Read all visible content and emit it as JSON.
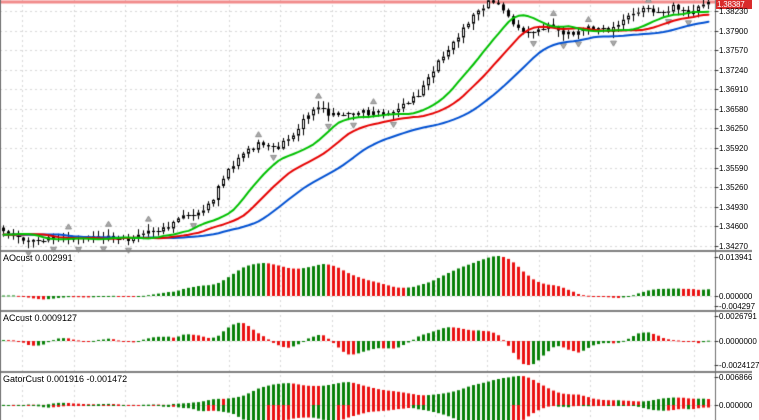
{
  "main_pane": {
    "price_labels": [
      "1.38230",
      "1.37900",
      "1.37570",
      "1.37240",
      "1.36910",
      "1.36580",
      "1.36250",
      "1.35920",
      "1.35590",
      "1.35260",
      "1.34930",
      "1.34600",
      "1.34270"
    ],
    "price_box": "1.38387"
  },
  "panes": [
    {
      "name": "awesome-oscillator",
      "label": "AOcust 0.002991",
      "scale_labels": [
        "0.013941",
        "0.000000",
        "-0.004297"
      ]
    },
    {
      "name": "accelerator-oscillator",
      "label": "ACcust 0.0009127",
      "scale_labels": [
        "0.0026791",
        "0.0000000",
        "-0.0024127"
      ]
    },
    {
      "name": "gator-oscillator",
      "label": "GatorCust 0.001916 -0.001472",
      "scale_labels": [
        "0.006866",
        "0.000000"
      ]
    }
  ],
  "colors": {
    "background": "#ffffff",
    "grid": "#d9d9d9",
    "separator": "#7f7f7f",
    "frame": "#6e6e6e",
    "candle_stroke": "#000000",
    "candle_up_fill": "#ffffff",
    "candle_down_fill": "#000000",
    "alligator_lips": "#00c000",
    "alligator_teeth": "#e60000",
    "alligator_jaw": "#0050d2",
    "hist_up": "#078007",
    "hist_down": "#ea1010",
    "fractal": "#ababab",
    "price_line": "#f28b8b",
    "price_box_bg": "#d92b2b",
    "price_box_text": "#ffffff",
    "label_text": "#000000"
  },
  "chart_data": {
    "type": "candlestick",
    "title": "",
    "y_axis": {
      "min": 1.3427,
      "max": 1.3823,
      "tick_step": 0.0033,
      "grid": true
    },
    "current_price": 1.38387,
    "bars_visible": 142,
    "price_path_keypoints": [
      [
        0,
        1.3449
      ],
      [
        2,
        1.3441
      ],
      [
        5,
        1.3438
      ],
      [
        10,
        1.3441
      ],
      [
        15,
        1.3437
      ],
      [
        20,
        1.3441
      ],
      [
        25,
        1.3439
      ],
      [
        28,
        1.3448
      ],
      [
        31,
        1.3452
      ],
      [
        34,
        1.3463
      ],
      [
        36,
        1.3479
      ],
      [
        39,
        1.348
      ],
      [
        42,
        1.3509
      ],
      [
        45,
        1.3553
      ],
      [
        47,
        1.3578
      ],
      [
        51,
        1.3598
      ],
      [
        55,
        1.3595
      ],
      [
        58,
        1.3612
      ],
      [
        61,
        1.3651
      ],
      [
        63,
        1.3658
      ],
      [
        67,
        1.3644
      ],
      [
        71,
        1.3655
      ],
      [
        75,
        1.3648
      ],
      [
        79,
        1.366
      ],
      [
        83,
        1.3684
      ],
      [
        87,
        1.3736
      ],
      [
        91,
        1.378
      ],
      [
        94,
        1.3817
      ],
      [
        97,
        1.3838
      ],
      [
        99,
        1.383
      ],
      [
        102,
        1.3801
      ],
      [
        105,
        1.3788
      ],
      [
        109,
        1.3796
      ],
      [
        113,
        1.3784
      ],
      [
        117,
        1.3797
      ],
      [
        121,
        1.3789
      ],
      [
        125,
        1.3812
      ],
      [
        128,
        1.3825
      ],
      [
        131,
        1.3818
      ],
      [
        134,
        1.3831
      ],
      [
        137,
        1.3822
      ],
      [
        140,
        1.3834
      ],
      [
        141,
        1.38387
      ]
    ],
    "overlays": [
      {
        "name": "alligator-lips",
        "type": "smma",
        "period": 5,
        "shift": 3,
        "color": "#00c000"
      },
      {
        "name": "alligator-teeth",
        "type": "smma",
        "period": 8,
        "shift": 5,
        "color": "#e60000"
      },
      {
        "name": "alligator-jaw",
        "type": "smma",
        "period": 13,
        "shift": 8,
        "color": "#0050d2"
      },
      {
        "name": "fractals",
        "type": "arrows",
        "color": "#ababab"
      }
    ],
    "sub_indicators": [
      {
        "name": "AOcust",
        "formula": "SMA5(median)-SMA34(median)",
        "last_value": 0.002991,
        "scale_max": 0.013941,
        "scale_min": -0.004297
      },
      {
        "name": "ACcust",
        "formula": "AO-SMA5(AO)",
        "last_value": 0.0009127,
        "scale_max": 0.0026791,
        "scale_min": -0.0024127
      },
      {
        "name": "GatorCust",
        "formula": "+|jaw-teeth| / -|teeth-lips|",
        "last_values": [
          0.001916,
          -0.001472
        ],
        "scale_max": 0.006866
      }
    ]
  }
}
